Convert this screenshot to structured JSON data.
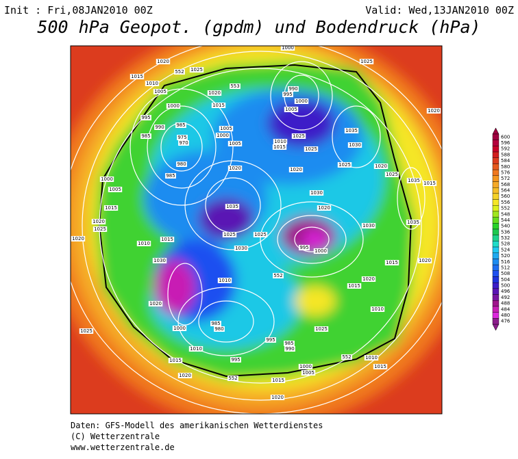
{
  "header": {
    "init": "Init : Fri,08JAN2010 00Z",
    "valid": "Valid: Wed,13JAN2010 00Z",
    "title": "500 hPa Geopot. (gpdm) und Bodendruck (hPa)"
  },
  "isobar_labels": [
    "1020",
    "552",
    "1025",
    "1000",
    "1025",
    "1015",
    "1010",
    "1005",
    "1020",
    "553",
    "990",
    "995",
    "1000",
    "1015",
    "1000",
    "1005",
    "1020",
    "995",
    "990",
    "985",
    "1005",
    "975",
    "970",
    "985",
    "1000",
    "1025",
    "1035",
    "1030",
    "1005",
    "1010",
    "1015",
    "1025",
    "980",
    "1020",
    "1025",
    "1020",
    "1025",
    "1020",
    "1000",
    "985",
    "1035",
    "1015",
    "1005",
    "1030",
    "1020",
    "1035",
    "1015",
    "1020",
    "1025",
    "1020",
    "995",
    "1000",
    "1030",
    "1035",
    "1025",
    "1025",
    "1015",
    "1010",
    "1030",
    "1015",
    "1020",
    "1020",
    "1010",
    "1015",
    "1000",
    "985",
    "980",
    "1025",
    "1010",
    "995",
    "985",
    "990",
    "1015",
    "1025",
    "1020",
    "995",
    "1000",
    "1005",
    "1015",
    "1020",
    "1010",
    "1015",
    "552",
    "552",
    "552",
    "1030",
    "1020",
    "1010"
  ],
  "colorbar": [
    {
      "value": 600,
      "color": "#a00040"
    },
    {
      "value": 596,
      "color": "#b4003c"
    },
    {
      "value": 592,
      "color": "#c80028"
    },
    {
      "value": 588,
      "color": "#d21e1e"
    },
    {
      "value": 584,
      "color": "#dc3c1e"
    },
    {
      "value": 580,
      "color": "#e65a1e"
    },
    {
      "value": 576,
      "color": "#f0781e"
    },
    {
      "value": 572,
      "color": "#f5961e"
    },
    {
      "value": 568,
      "color": "#f5aa28"
    },
    {
      "value": 564,
      "color": "#f5be28"
    },
    {
      "value": 560,
      "color": "#f5d228"
    },
    {
      "value": 556,
      "color": "#f5e628"
    },
    {
      "value": 552,
      "color": "#dcf01e"
    },
    {
      "value": 548,
      "color": "#a0e61e"
    },
    {
      "value": 544,
      "color": "#64dc1e"
    },
    {
      "value": 540,
      "color": "#28d228"
    },
    {
      "value": 536,
      "color": "#1ec850"
    },
    {
      "value": 532,
      "color": "#1ed28c"
    },
    {
      "value": 528,
      "color": "#1edcc8"
    },
    {
      "value": 524,
      "color": "#1ec8f0"
    },
    {
      "value": 520,
      "color": "#1eaaf0"
    },
    {
      "value": 516,
      "color": "#1e8cf0"
    },
    {
      "value": 512,
      "color": "#1e6ef0"
    },
    {
      "value": 508,
      "color": "#1e50f0"
    },
    {
      "value": 504,
      "color": "#1e32dc"
    },
    {
      "value": 500,
      "color": "#3c1ec8"
    },
    {
      "value": 496,
      "color": "#5a14b4"
    },
    {
      "value": 492,
      "color": "#7814a0"
    },
    {
      "value": 488,
      "color": "#a0148c"
    },
    {
      "value": 484,
      "color": "#c81eb4"
    },
    {
      "value": 480,
      "color": "#dc28dc"
    },
    {
      "value": 476,
      "color": "#8c1e8c"
    }
  ],
  "footer": {
    "line1": "Daten: GFS-Modell des amerikanischen Wetterdienstes",
    "line2": "(C) Wetterzentrale",
    "line3": "www.wetterzentrale.de"
  }
}
